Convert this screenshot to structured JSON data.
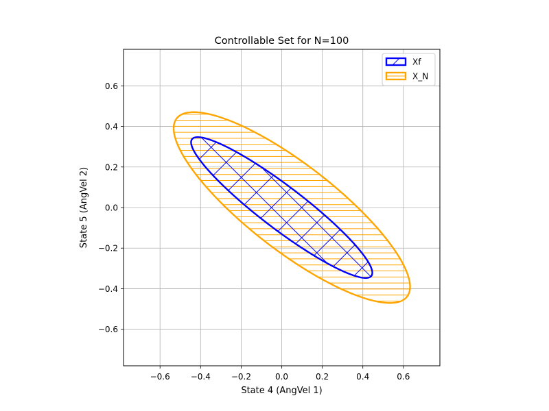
{
  "chart_data": {
    "type": "area",
    "title": "Controllable Set for N=100",
    "xlabel": "State 4 (AngVel 1)",
    "ylabel": "State 5 (AngVel 2)",
    "xlim": [
      -0.78,
      0.78
    ],
    "ylim": [
      -0.78,
      0.78
    ],
    "xticks": [
      -0.6,
      -0.4,
      -0.2,
      0.0,
      0.2,
      0.4,
      0.6
    ],
    "yticks": [
      -0.6,
      -0.4,
      -0.2,
      0.0,
      0.2,
      0.4,
      0.6
    ],
    "xtick_labels": [
      "−0.6",
      "−0.4",
      "−0.2",
      "0.0",
      "0.2",
      "0.4",
      "0.6"
    ],
    "ytick_labels": [
      "−0.6",
      "−0.4",
      "−0.2",
      "0.0",
      "0.2",
      "0.4",
      "0.6"
    ],
    "grid": true,
    "legend_position": "upper right",
    "series": [
      {
        "name": "Xf",
        "color": "#0000ff",
        "hatch": "crosshatch",
        "ellipse": {
          "center": [
            0.0,
            0.0
          ],
          "semi_axes": [
            0.556,
            0.105
          ],
          "angle_deg": -37.3
        }
      },
      {
        "name": "X_N",
        "color": "#ffa500",
        "hatch": "horizontal",
        "ellipse": {
          "center": [
            0.05,
            0.0
          ],
          "semi_axes": [
            0.718,
            0.213
          ],
          "angle_deg": -37.7
        }
      }
    ]
  }
}
